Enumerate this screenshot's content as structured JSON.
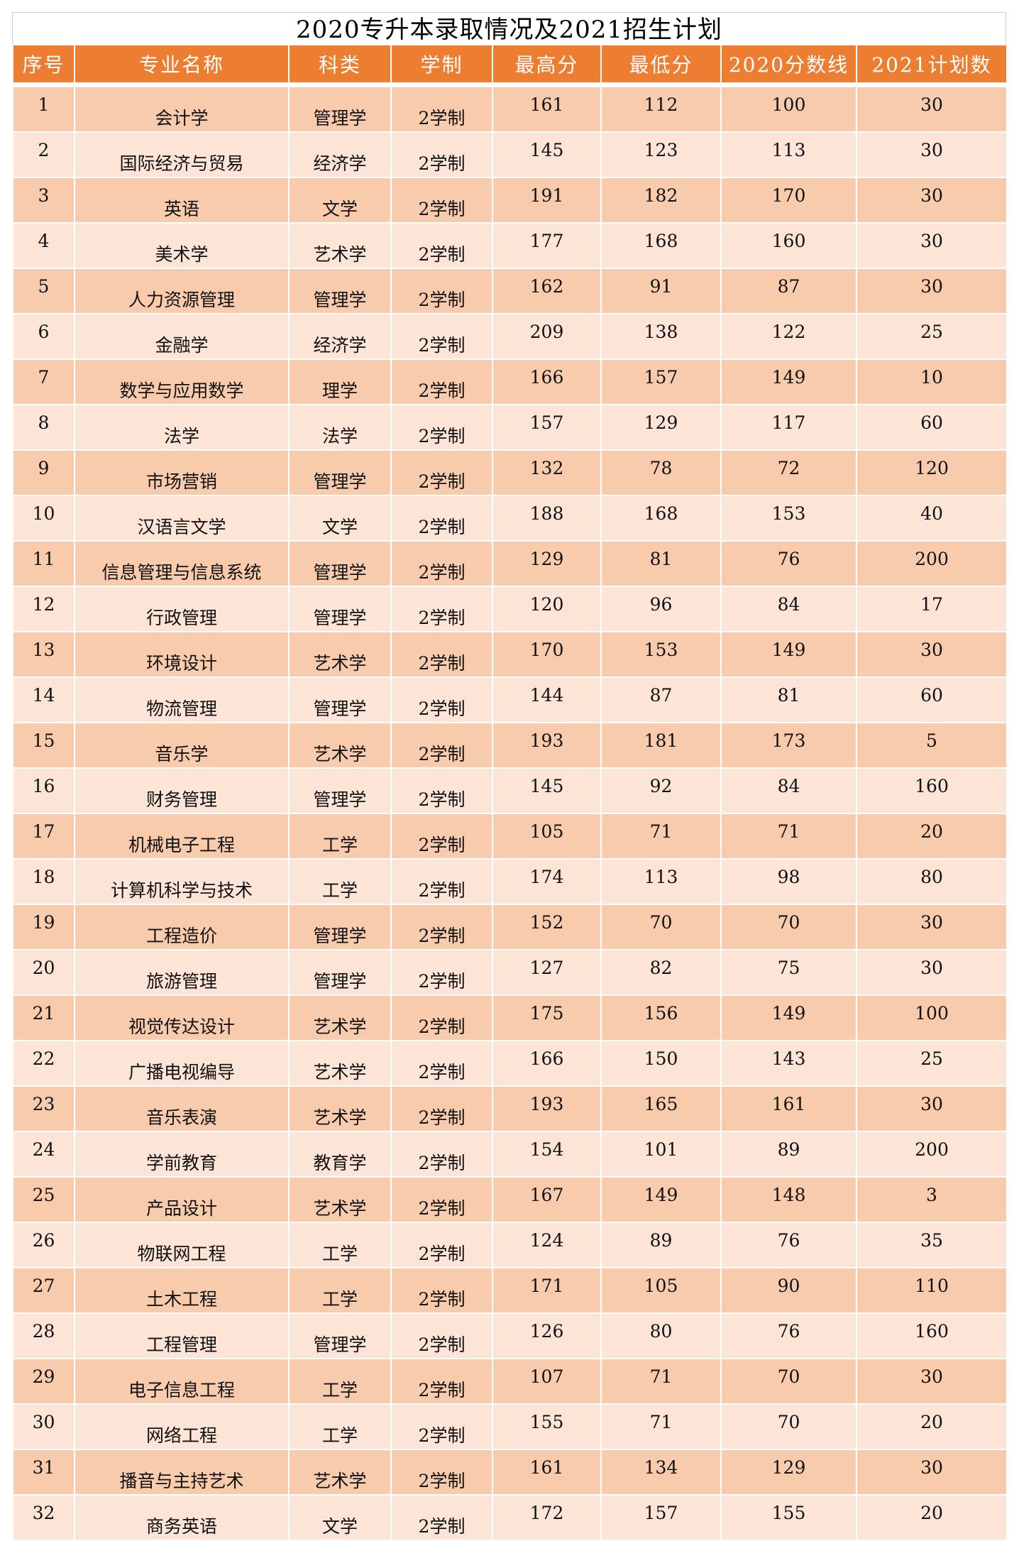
{
  "title": "2020专升本录取情况及2021招生计划",
  "colors": {
    "header": "#ED7D31",
    "row_odd": "#F8CBAD",
    "row_even": "#FCE4D6"
  },
  "columns": [
    "序号",
    "专业名称",
    "科类",
    "学制",
    "最高分",
    "最低分",
    "2020分数线",
    "2021计划数"
  ],
  "rows": [
    [
      "1",
      "会计学",
      "管理学",
      "2学制",
      "161",
      "112",
      "100",
      "30"
    ],
    [
      "2",
      "国际经济与贸易",
      "经济学",
      "2学制",
      "145",
      "123",
      "113",
      "30"
    ],
    [
      "3",
      "英语",
      "文学",
      "2学制",
      "191",
      "182",
      "170",
      "30"
    ],
    [
      "4",
      "美术学",
      "艺术学",
      "2学制",
      "177",
      "168",
      "160",
      "30"
    ],
    [
      "5",
      "人力资源管理",
      "管理学",
      "2学制",
      "162",
      "91",
      "87",
      "30"
    ],
    [
      "6",
      "金融学",
      "经济学",
      "2学制",
      "209",
      "138",
      "122",
      "25"
    ],
    [
      "7",
      "数学与应用数学",
      "理学",
      "2学制",
      "166",
      "157",
      "149",
      "10"
    ],
    [
      "8",
      "法学",
      "法学",
      "2学制",
      "157",
      "129",
      "117",
      "60"
    ],
    [
      "9",
      "市场营销",
      "管理学",
      "2学制",
      "132",
      "78",
      "72",
      "120"
    ],
    [
      "10",
      "汉语言文学",
      "文学",
      "2学制",
      "188",
      "168",
      "153",
      "40"
    ],
    [
      "11",
      "信息管理与信息系统",
      "管理学",
      "2学制",
      "129",
      "81",
      "76",
      "200"
    ],
    [
      "12",
      "行政管理",
      "管理学",
      "2学制",
      "120",
      "96",
      "84",
      "17"
    ],
    [
      "13",
      "环境设计",
      "艺术学",
      "2学制",
      "170",
      "153",
      "149",
      "30"
    ],
    [
      "14",
      "物流管理",
      "管理学",
      "2学制",
      "144",
      "87",
      "81",
      "60"
    ],
    [
      "15",
      "音乐学",
      "艺术学",
      "2学制",
      "193",
      "181",
      "173",
      "5"
    ],
    [
      "16",
      "财务管理",
      "管理学",
      "2学制",
      "145",
      "92",
      "84",
      "160"
    ],
    [
      "17",
      "机械电子工程",
      "工学",
      "2学制",
      "105",
      "71",
      "71",
      "20"
    ],
    [
      "18",
      "计算机科学与技术",
      "工学",
      "2学制",
      "174",
      "113",
      "98",
      "80"
    ],
    [
      "19",
      "工程造价",
      "管理学",
      "2学制",
      "152",
      "70",
      "70",
      "30"
    ],
    [
      "20",
      "旅游管理",
      "管理学",
      "2学制",
      "127",
      "82",
      "75",
      "30"
    ],
    [
      "21",
      "视觉传达设计",
      "艺术学",
      "2学制",
      "175",
      "156",
      "149",
      "100"
    ],
    [
      "22",
      "广播电视编导",
      "艺术学",
      "2学制",
      "166",
      "150",
      "143",
      "25"
    ],
    [
      "23",
      "音乐表演",
      "艺术学",
      "2学制",
      "193",
      "165",
      "161",
      "30"
    ],
    [
      "24",
      "学前教育",
      "教育学",
      "2学制",
      "154",
      "101",
      "89",
      "200"
    ],
    [
      "25",
      "产品设计",
      "艺术学",
      "2学制",
      "167",
      "149",
      "148",
      "3"
    ],
    [
      "26",
      "物联网工程",
      "工学",
      "2学制",
      "124",
      "89",
      "76",
      "35"
    ],
    [
      "27",
      "土木工程",
      "工学",
      "2学制",
      "171",
      "105",
      "90",
      "110"
    ],
    [
      "28",
      "工程管理",
      "管理学",
      "2学制",
      "126",
      "80",
      "76",
      "160"
    ],
    [
      "29",
      "电子信息工程",
      "工学",
      "2学制",
      "107",
      "71",
      "70",
      "30"
    ],
    [
      "30",
      "网络工程",
      "工学",
      "2学制",
      "155",
      "71",
      "70",
      "20"
    ],
    [
      "31",
      "播音与主持艺术",
      "艺术学",
      "2学制",
      "161",
      "134",
      "129",
      "30"
    ],
    [
      "32",
      "商务英语",
      "文学",
      "2学制",
      "172",
      "157",
      "155",
      "20"
    ]
  ]
}
